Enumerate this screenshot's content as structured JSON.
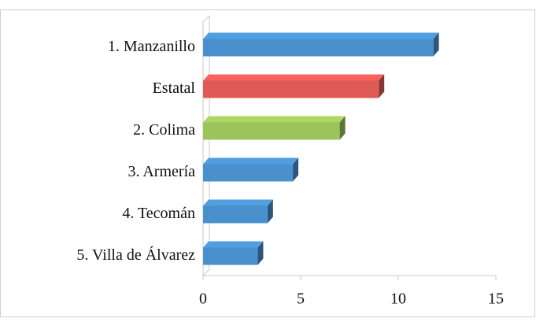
{
  "chart_data": {
    "type": "bar",
    "orientation": "horizontal",
    "categories": [
      "1. Manzanillo",
      "Estatal",
      "2. Colima",
      "3. Armería",
      "4. Tecomán",
      "5. Villa de Álvarez"
    ],
    "values": [
      11.8,
      9.0,
      7.0,
      4.6,
      3.3,
      2.8
    ],
    "colors": [
      "#4a90cc",
      "#e05a55",
      "#9bc45a",
      "#4a90cc",
      "#4a90cc",
      "#4a90cc"
    ],
    "xlim": [
      0,
      15
    ],
    "xticks": [
      0,
      5,
      10,
      15
    ]
  }
}
